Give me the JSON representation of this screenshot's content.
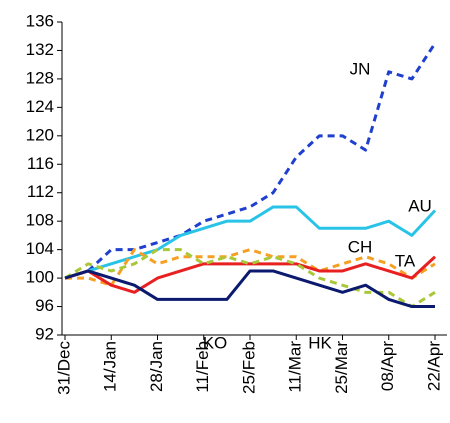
{
  "chart_data": {
    "type": "line",
    "categories": [
      "31/Dec",
      null,
      "14/Jan",
      null,
      "28/Jan",
      null,
      "11/Feb",
      null,
      "25/Feb",
      null,
      "11/Mar",
      null,
      "25/Mar",
      null,
      "08/Apr",
      null,
      "22/Apr"
    ],
    "ylim": [
      92,
      136
    ],
    "yticks": [
      92,
      96,
      100,
      104,
      108,
      112,
      116,
      120,
      124,
      128,
      132,
      136
    ],
    "grid": false,
    "series": [
      {
        "name": "JN",
        "color": "#1f3fcf",
        "dash": true,
        "values": [
          100,
          101,
          104,
          104,
          105,
          106,
          108,
          109,
          110,
          112,
          117,
          120,
          120,
          118,
          129,
          128,
          133
        ]
      },
      {
        "name": "AU",
        "color": "#29c3e8",
        "dash": false,
        "values": [
          100,
          101,
          102,
          103,
          104,
          106,
          107,
          108,
          108,
          110,
          110,
          107,
          107,
          107,
          108,
          106,
          109.5
        ]
      },
      {
        "name": "CH",
        "color": "#f5a023",
        "dash": true,
        "values": [
          100,
          100,
          99,
          104,
          102,
          103,
          103,
          103,
          104,
          103,
          103,
          101,
          102,
          103,
          102,
          100,
          102
        ]
      },
      {
        "name": "TA",
        "color": "#e82020",
        "dash": false,
        "values": [
          100,
          101,
          99,
          98,
          100,
          101,
          102,
          102,
          102,
          102,
          102,
          101,
          101,
          102,
          101,
          100,
          103
        ]
      },
      {
        "name": "KO",
        "color": "#a8c83a",
        "dash": true,
        "values": [
          100,
          102,
          101,
          102,
          104,
          104,
          102,
          103,
          102,
          103,
          102,
          100,
          99,
          98,
          98,
          96,
          98
        ]
      },
      {
        "name": "HK",
        "color": "#0b1a6e",
        "dash": false,
        "values": [
          100,
          101,
          100,
          99,
          97,
          97,
          97,
          97,
          101,
          101,
          100,
          99,
          98,
          99,
          97,
          96,
          96
        ]
      }
    ]
  }
}
